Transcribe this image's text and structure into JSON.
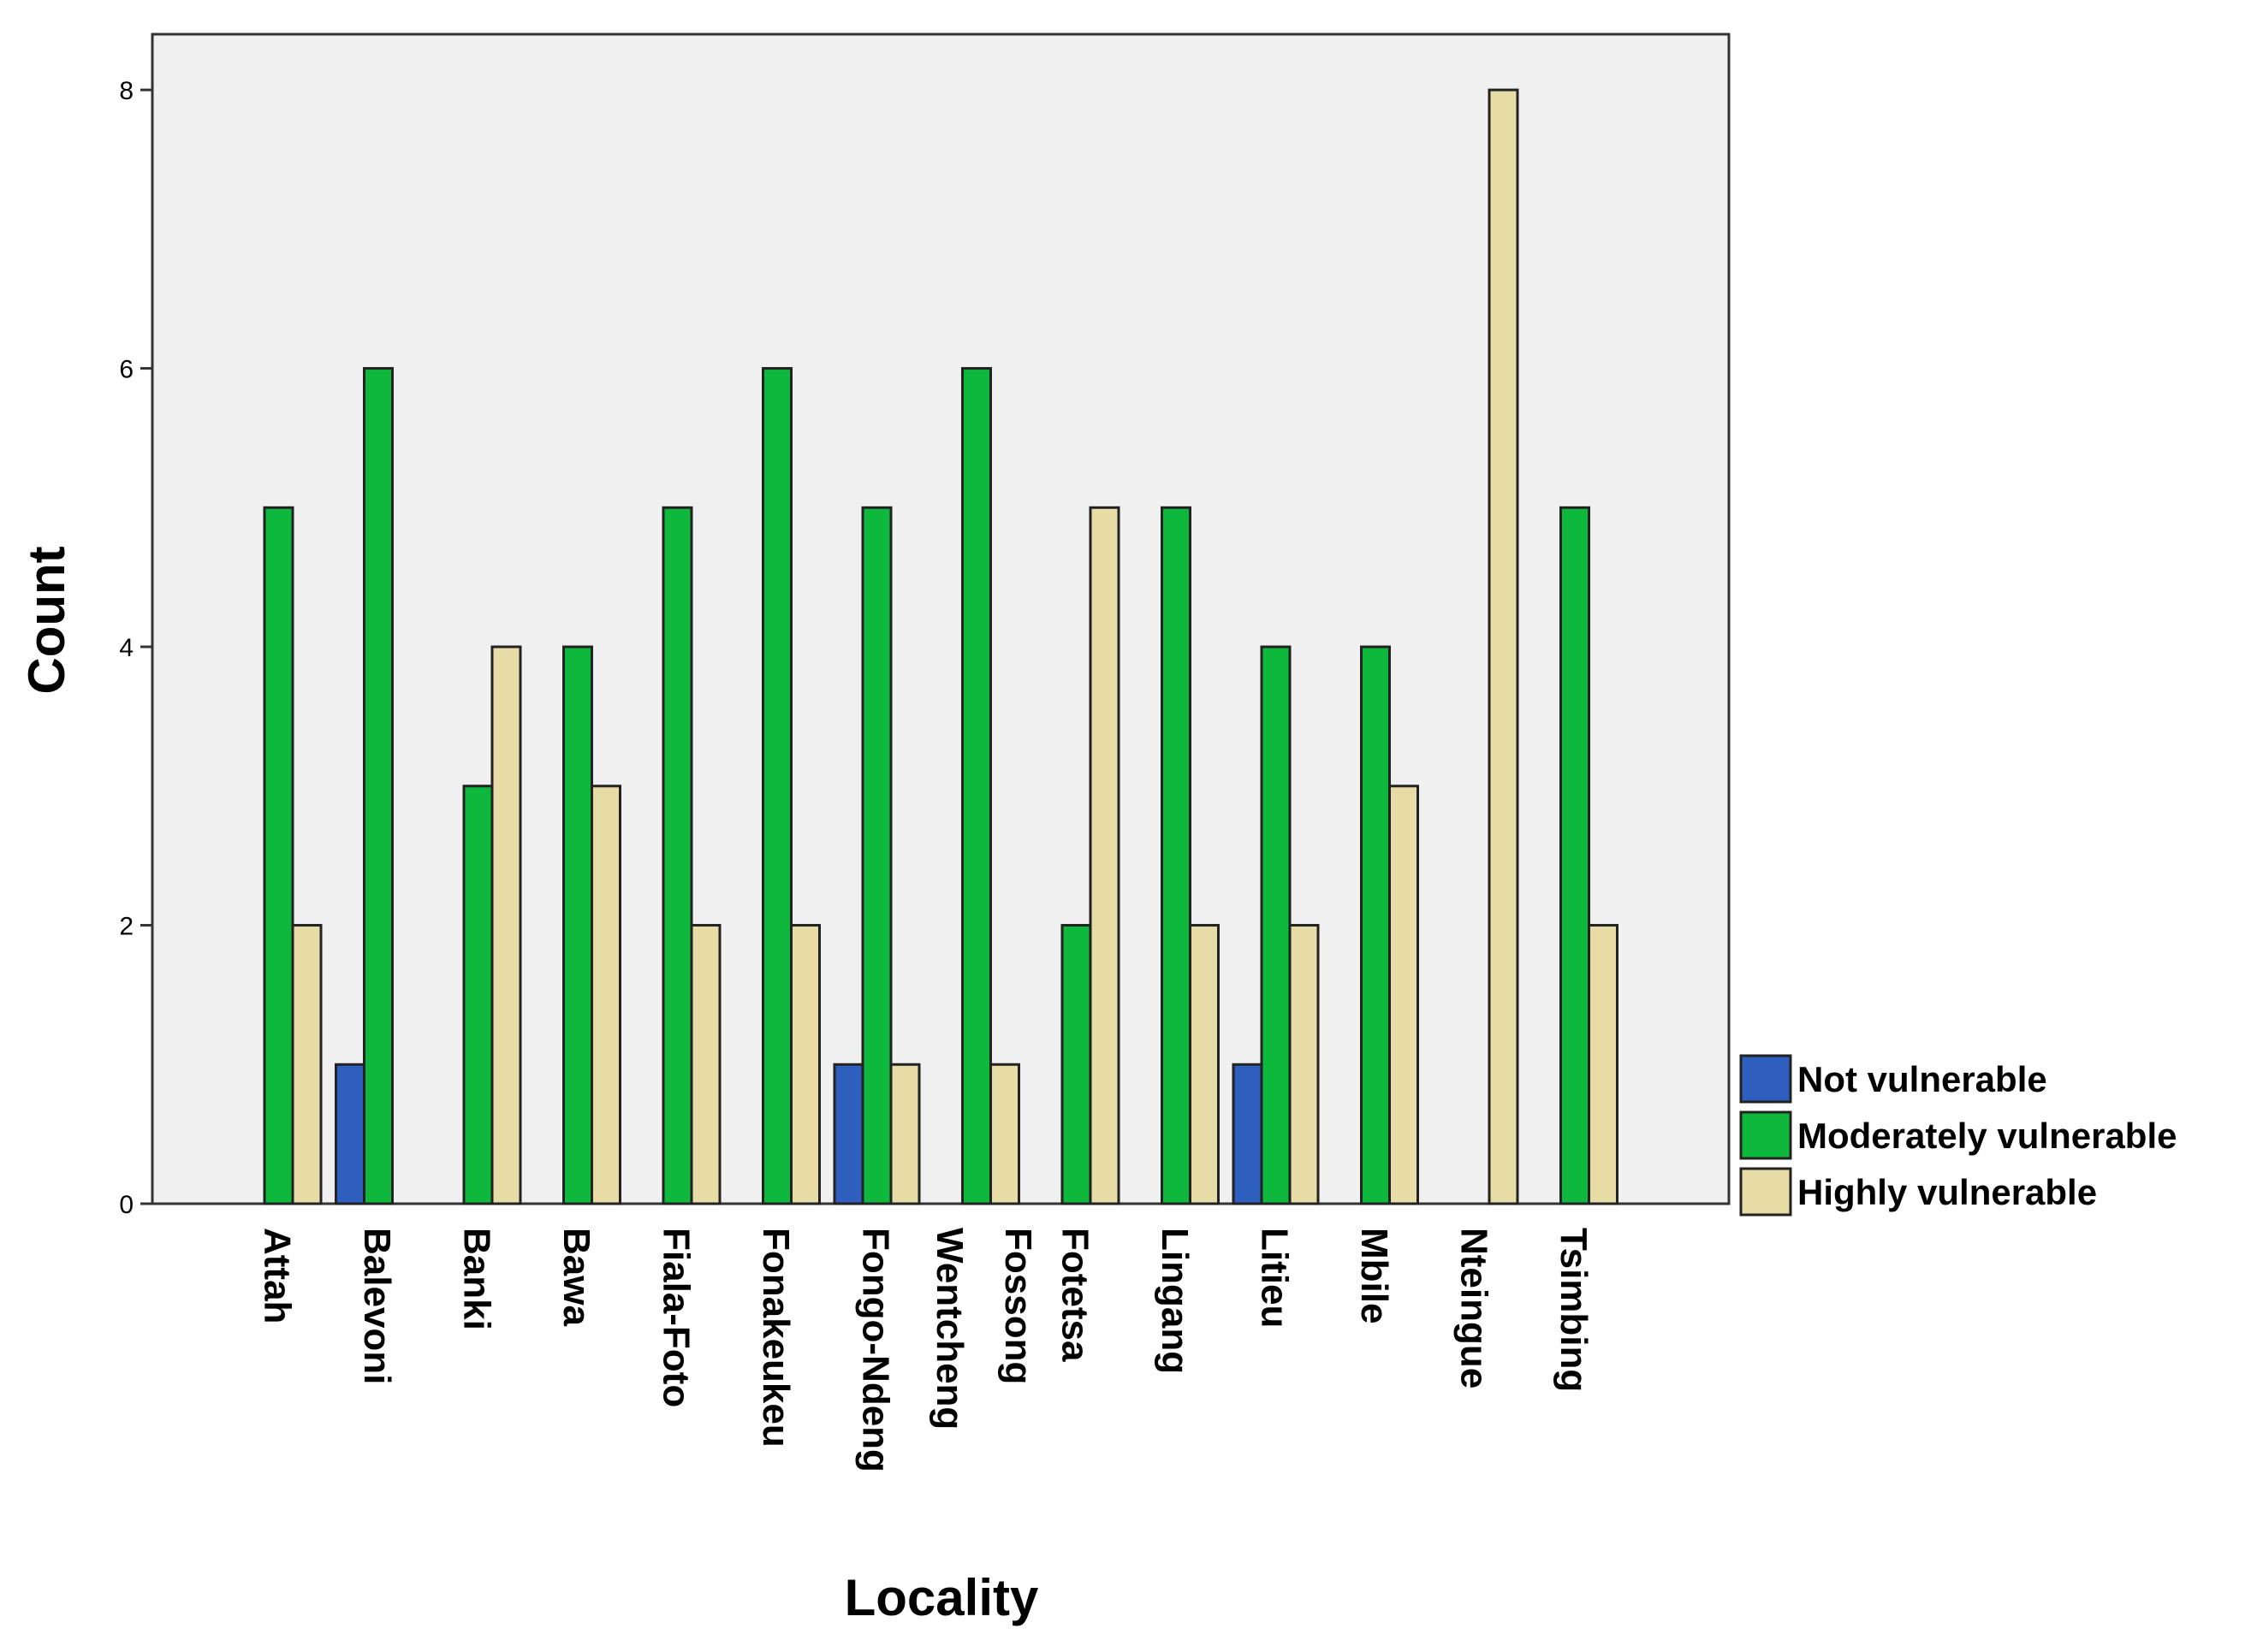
{
  "chart_data": {
    "type": "bar",
    "title": "",
    "xlabel": "Locality",
    "ylabel": "Count",
    "ylim": [
      0,
      8.4
    ],
    "yticks": [
      0,
      2,
      4,
      6,
      8
    ],
    "grid": false,
    "legend_position": "right-bottom",
    "categories": [
      [
        "Attah"
      ],
      [
        "Balevoni"
      ],
      [
        "Banki"
      ],
      [
        "Bawa"
      ],
      [
        "Fiala-Foto"
      ],
      [
        "Fonakeukeu"
      ],
      [
        "Fongo-Ndeng"
      ],
      [
        "Fossong",
        "Wentcheng"
      ],
      [
        "Fotetsa"
      ],
      [
        "Lingang"
      ],
      [
        "Litieu"
      ],
      [
        "Mbile"
      ],
      [
        "Nteingue"
      ],
      [
        "Tsimbing"
      ]
    ],
    "series": [
      {
        "name": "Not vulnerable",
        "color": "#2e5fbf",
        "values": [
          0,
          1,
          0,
          0,
          0,
          0,
          1,
          0,
          0,
          0,
          1,
          0,
          0,
          0
        ]
      },
      {
        "name": "Moderately vulnerable",
        "color": "#0db83c",
        "values": [
          5,
          6,
          3,
          4,
          5,
          6,
          5,
          6,
          2,
          5,
          4,
          4,
          0,
          5
        ]
      },
      {
        "name": "Highly vulnerable",
        "color": "#e8dca6",
        "values": [
          2,
          0,
          4,
          3,
          2,
          2,
          1,
          1,
          5,
          2,
          2,
          3,
          8,
          2
        ]
      }
    ],
    "plot_background": "#f0f0f0"
  }
}
